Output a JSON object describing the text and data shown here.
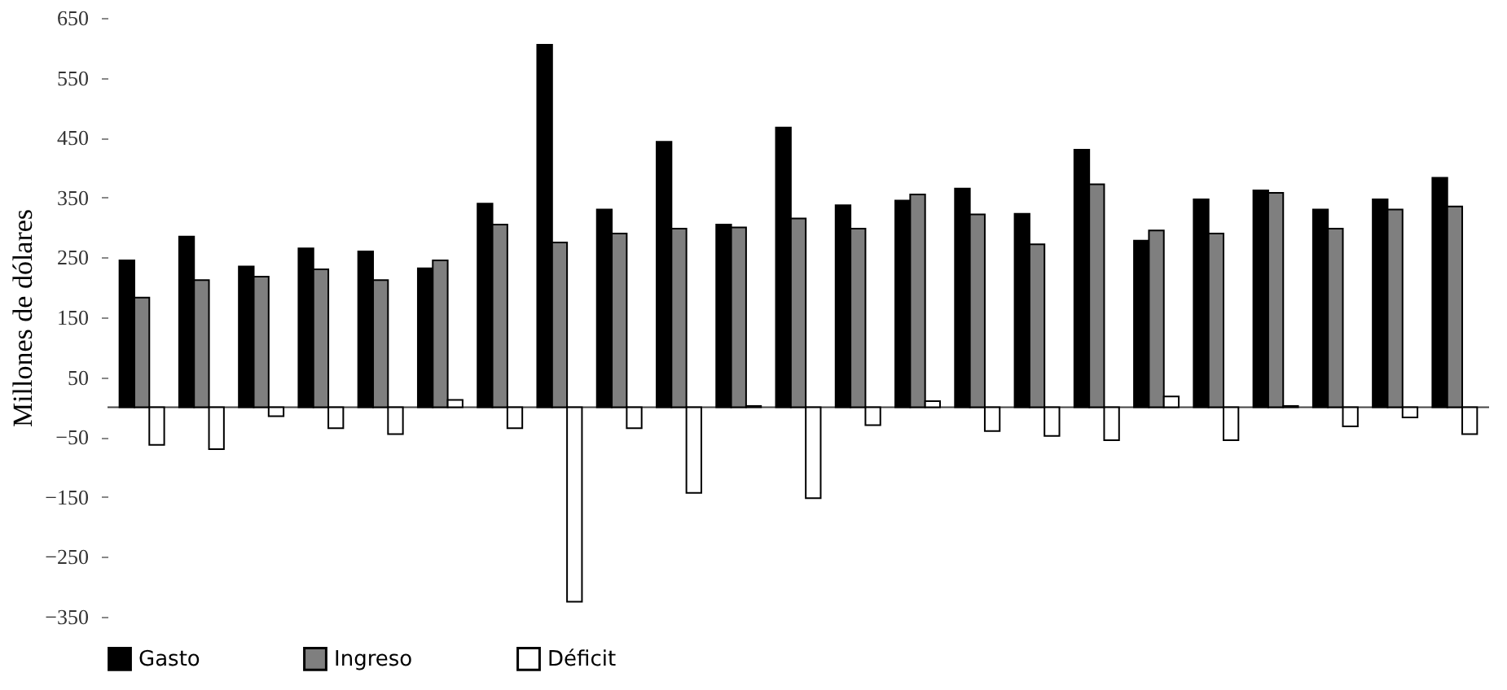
{
  "chart_data": {
    "type": "bar",
    "ylabel": "Millones de dólares",
    "categories": [
      null,
      null,
      null,
      null,
      null,
      null,
      null,
      null,
      null,
      null,
      null,
      null,
      null,
      null,
      null,
      null,
      null,
      null,
      null,
      null,
      null,
      null,
      null
    ],
    "series": [
      {
        "name": "Gasto",
        "color": "#000000",
        "values": [
          245,
          285,
          235,
          265,
          260,
          232,
          340,
          605,
          330,
          443,
          305,
          467,
          337,
          345,
          365,
          323,
          430,
          278,
          347,
          362,
          330,
          347,
          383
        ]
      },
      {
        "name": "Ingreso",
        "color": "#7f7f7f",
        "values": [
          183,
          212,
          218,
          230,
          212,
          245,
          305,
          275,
          290,
          298,
          300,
          315,
          298,
          355,
          322,
          272,
          372,
          295,
          290,
          358,
          298,
          330,
          335
        ]
      },
      {
        "name": "Déficit",
        "color": "#ffffff",
        "values": [
          -63,
          -70,
          -15,
          -35,
          -45,
          12,
          -35,
          -325,
          -35,
          -143,
          2,
          -152,
          -30,
          10,
          -40,
          -48,
          -55,
          18,
          -55,
          2,
          -32,
          -17,
          -45
        ]
      }
    ],
    "ylim": [
      -350,
      650
    ],
    "yticks": [
      {
        "value": -350,
        "label": "−350"
      },
      {
        "value": -250,
        "label": "−250"
      },
      {
        "value": -150,
        "label": "−150"
      },
      {
        "value": -50,
        "label": "−50"
      },
      50,
      150,
      250,
      350,
      450,
      550,
      650
    ],
    "grid": false,
    "legend": "bottom",
    "tick_labels": "y"
  }
}
